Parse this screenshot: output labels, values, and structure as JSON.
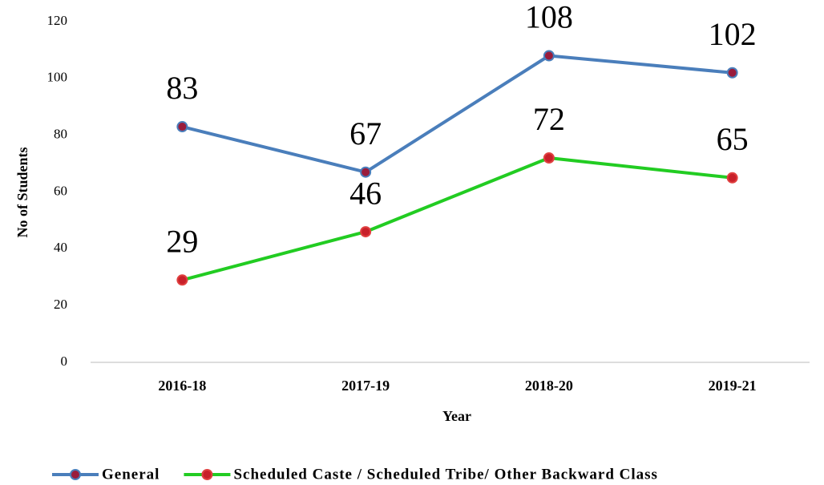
{
  "chart_data": {
    "type": "line",
    "x_label": "Year",
    "y_label": "No of Students",
    "categories": [
      "2016-18",
      "2017-19",
      "2018-20",
      "2019-21"
    ],
    "series": [
      {
        "name": "General",
        "color": "#4a7ebb",
        "marker_color": "#9a1c3c",
        "values": [
          83,
          67,
          108,
          102
        ]
      },
      {
        "name": "Scheduled Caste / Scheduled Tribe/ Other Backward Class",
        "color": "#22cc22",
        "marker_color": "#c8202a",
        "values": [
          29,
          46,
          72,
          65
        ]
      }
    ],
    "ylim": [
      0,
      120
    ],
    "yticks": [
      0,
      20,
      40,
      60,
      80,
      100,
      120
    ],
    "grid": false
  }
}
